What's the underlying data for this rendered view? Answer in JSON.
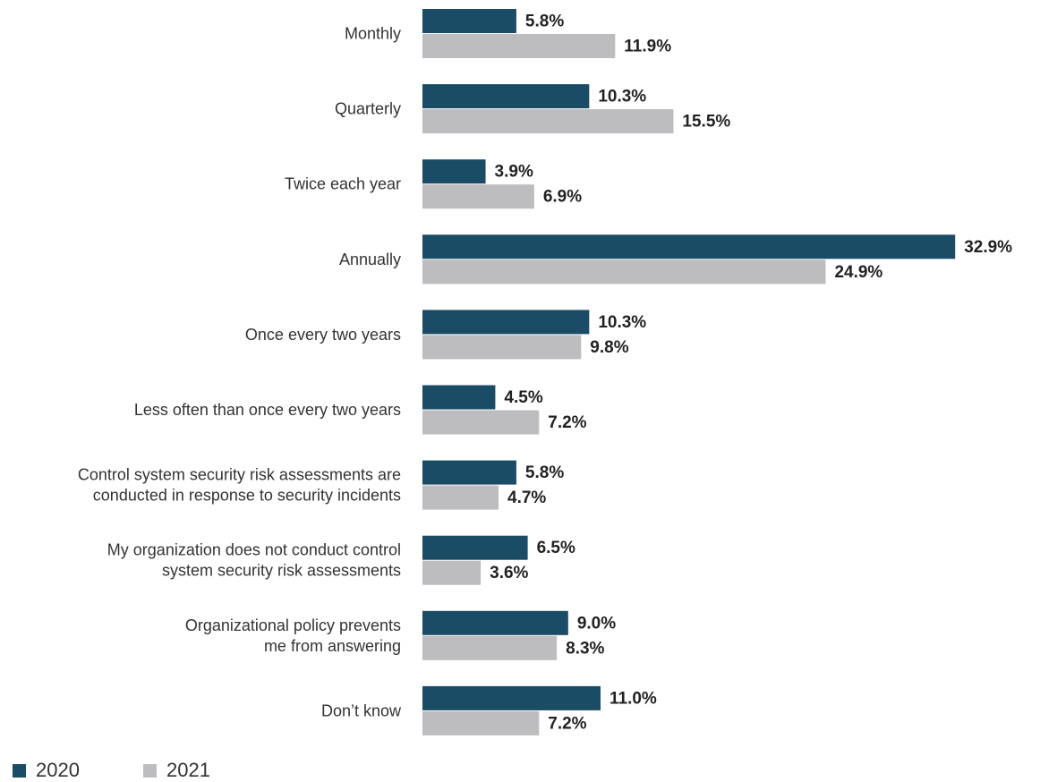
{
  "chart_data": {
    "type": "bar",
    "orientation": "horizontal",
    "categories": [
      [
        "Monthly"
      ],
      [
        "Quarterly"
      ],
      [
        "Twice each year"
      ],
      [
        "Annually"
      ],
      [
        "Once every two years"
      ],
      [
        "Less often than once every two years"
      ],
      [
        "Control system security risk assessments are",
        "conducted in response to security incidents"
      ],
      [
        "My organization does not conduct control",
        "system security risk assessments"
      ],
      [
        "Organizational policy prevents",
        "me from answering"
      ],
      [
        "Don’t know"
      ]
    ],
    "series": [
      {
        "name": "2020",
        "color": "#1b4c66",
        "values": [
          5.8,
          10.3,
          3.9,
          32.9,
          10.3,
          4.5,
          5.8,
          6.5,
          9.0,
          11.0
        ],
        "labels": [
          "5.8%",
          "10.3%",
          "3.9%",
          "32.9%",
          "10.3%",
          "4.5%",
          "5.8%",
          "6.5%",
          "9.0%",
          "11.0%"
        ]
      },
      {
        "name": "2021",
        "color": "#bdbdbf",
        "values": [
          11.9,
          15.5,
          6.9,
          24.9,
          9.8,
          7.2,
          4.7,
          3.6,
          8.3,
          7.2
        ],
        "labels": [
          "11.9%",
          "15.5%",
          "6.9%",
          "24.9%",
          "9.8%",
          "7.2%",
          "4.7%",
          "3.6%",
          "8.3%",
          "7.2%"
        ]
      }
    ],
    "xlim": [
      0,
      33
    ],
    "grid": false,
    "legend_position": "bottom-left",
    "title": "",
    "xlabel": "",
    "ylabel": ""
  }
}
